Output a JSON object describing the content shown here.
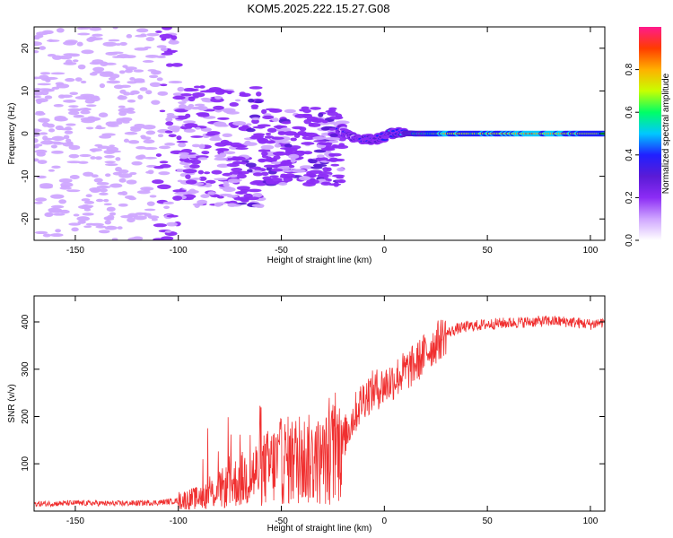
{
  "page": {
    "title": "KOM5.2025.222.15.27.G08"
  },
  "colors": {
    "snr_line": "#f03030",
    "axis": "#000000",
    "colormap": [
      "#ffffff",
      "#cfa6ff",
      "#8c2cf5",
      "#5a1bd6",
      "#2020ff",
      "#00c8ff",
      "#00ff66",
      "#c8ff00",
      "#ffb000",
      "#ff3c00",
      "#ff1a8c"
    ]
  },
  "chart_data": [
    {
      "id": "spectrogram",
      "type": "heatmap",
      "title": "",
      "xlabel": "Height of straight line (km)",
      "ylabel": "Frequency (Hz)",
      "xlim": [
        -170,
        107
      ],
      "ylim": [
        -25,
        25
      ],
      "xticks": [
        -150,
        -100,
        -50,
        0,
        50,
        100
      ],
      "yticks": [
        -20,
        -10,
        0,
        10,
        20
      ],
      "colorbar": {
        "label": "Normalized spectral amplitude",
        "range": [
          0,
          1
        ],
        "ticks": [
          "0.0",
          "0.2",
          "0.4",
          "0.6",
          "0.8"
        ]
      },
      "ridge": [
        {
          "x": -22,
          "f": 1.2,
          "amp": 0.3
        },
        {
          "x": -15,
          "f": -1.0,
          "amp": 0.3
        },
        {
          "x": -5,
          "f": -1.5,
          "amp": 0.35
        },
        {
          "x": 5,
          "f": 0.2,
          "amp": 0.4
        },
        {
          "x": 15,
          "f": 0.0,
          "amp": 0.55
        },
        {
          "x": 30,
          "f": 0.0,
          "amp": 0.75
        },
        {
          "x": 50,
          "f": 0.0,
          "amp": 0.7
        },
        {
          "x": 70,
          "f": 0.0,
          "amp": 0.8
        },
        {
          "x": 90,
          "f": 0.0,
          "amp": 0.75
        },
        {
          "x": 107,
          "f": 0.0,
          "amp": 0.65
        }
      ]
    },
    {
      "id": "snr",
      "type": "line",
      "title": "",
      "xlabel": "Height of straight line (km)",
      "ylabel": "SNR (v/v)",
      "xlim": [
        -170,
        107
      ],
      "ylim": [
        0,
        455
      ],
      "xticks": [
        -150,
        -100,
        -50,
        0,
        50,
        100
      ],
      "yticks": [
        100,
        200,
        300,
        400
      ],
      "series": [
        {
          "name": "SNR",
          "x": [
            -170,
            -150,
            -130,
            -110,
            -100,
            -90,
            -80,
            -70,
            -60,
            -50,
            -40,
            -30,
            -25,
            -20,
            -15,
            -10,
            -5,
            0,
            5,
            10,
            15,
            20,
            25,
            30,
            35,
            40,
            50,
            60,
            70,
            80,
            90,
            100,
            107
          ],
          "y": [
            15,
            17,
            16,
            18,
            22,
            28,
            45,
            65,
            85,
            105,
            110,
            105,
            120,
            150,
            200,
            240,
            255,
            265,
            280,
            295,
            310,
            335,
            355,
            375,
            385,
            390,
            395,
            398,
            400,
            402,
            400,
            395,
            400
          ]
        }
      ]
    }
  ]
}
